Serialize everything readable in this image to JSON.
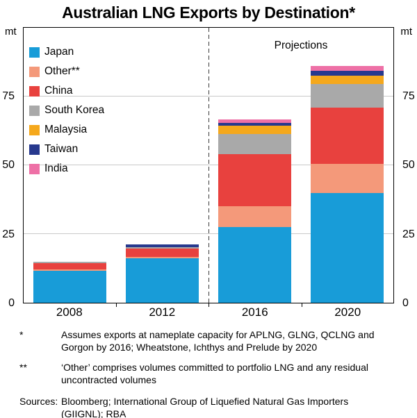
{
  "title": "Australian LNG Exports by Destination*",
  "axis": {
    "unit_left": "mt",
    "unit_right": "mt"
  },
  "projections_label": "Projections",
  "chart_data": {
    "type": "bar",
    "stacked": true,
    "title": "Australian LNG Exports by Destination*",
    "ylabel": "mt",
    "ylim": [
      0,
      100
    ],
    "yticks": [
      0,
      25,
      50,
      75
    ],
    "grid": true,
    "legend_position": "top-left",
    "projection_divider_after_category": "2012",
    "categories": [
      "2008",
      "2012",
      "2016",
      "2020"
    ],
    "series": [
      {
        "name": "Japan",
        "color": "#189cd8",
        "values": [
          11.5,
          16.2,
          27.5,
          40.0
        ]
      },
      {
        "name": "Other**",
        "color": "#f4997a",
        "values": [
          0.6,
          0.4,
          7.5,
          10.5
        ]
      },
      {
        "name": "China",
        "color": "#e8413e",
        "values": [
          2.3,
          3.2,
          19.0,
          20.5
        ]
      },
      {
        "name": "South Korea",
        "color": "#a9a9a9",
        "values": [
          0.6,
          0.4,
          7.5,
          8.5
        ]
      },
      {
        "name": "Malaysia",
        "color": "#f5a81c",
        "values": [
          0,
          0,
          3.0,
          3.0
        ]
      },
      {
        "name": "Taiwan",
        "color": "#27398e",
        "values": [
          0,
          1.0,
          1.0,
          1.75
        ]
      },
      {
        "name": "India",
        "color": "#ee70a6",
        "values": [
          0,
          0,
          1.25,
          1.75
        ]
      }
    ]
  },
  "footnotes": [
    {
      "marker": "*",
      "text": "Assumes exports at nameplate capacity for APLNG, GLNG, QCLNG and Gorgon by 2016; Wheatstone, Ichthys and Prelude by 2020"
    },
    {
      "marker": "**",
      "text": "‘Other’ comprises volumes committed to portfolio LNG and any residual uncontracted volumes"
    },
    {
      "marker": "Sources:",
      "text": "Bloomberg; International Group of Liquefied Natural Gas Importers (GIIGNL); RBA"
    }
  ]
}
